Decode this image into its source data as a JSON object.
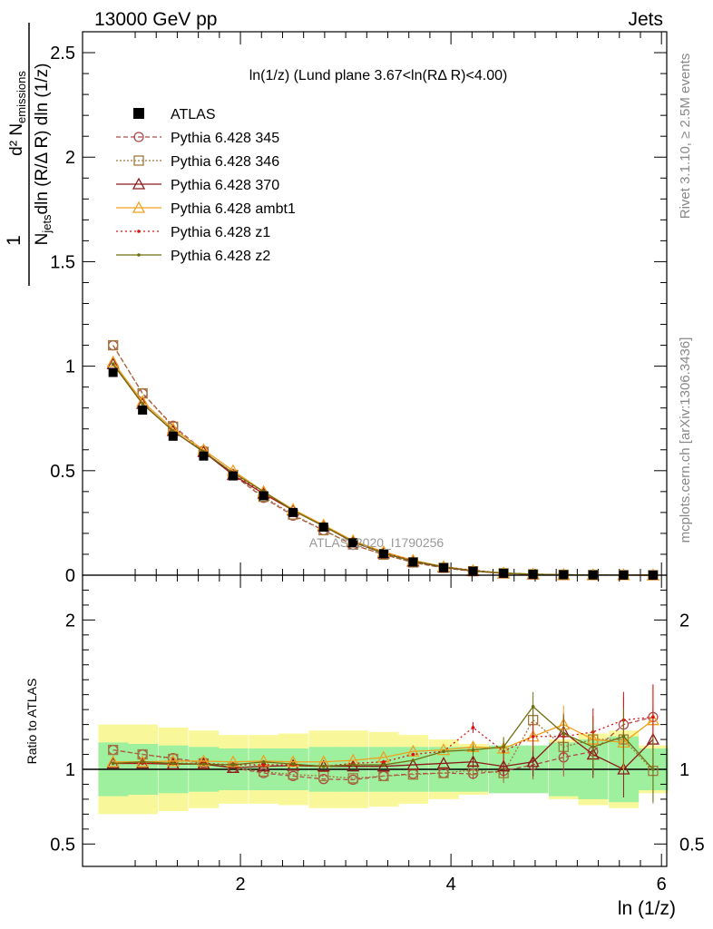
{
  "header": {
    "left": "13000 GeV pp",
    "right": "Jets",
    "side_right": "Rivet 3.1.10, ≥ 2.5M events",
    "side_right2": "mcplots.cern.ch [arXiv:1306.3436]"
  },
  "chart_data": [
    {
      "type": "line",
      "title": "ln(1/z) (Lund plane 3.67<ln(RΔ R)<4.00)",
      "watermark": "ATLAS_2020_I1790256",
      "xlabel": "ln (1/z)",
      "ylabel": "1/N_jets d² N_emissions / dln (R/Δ R) dln (1/z)",
      "xlim": [
        0.5,
        6.05
      ],
      "ylim": [
        0,
        2.6
      ],
      "yticks": [
        0,
        0.5,
        1,
        1.5,
        2,
        2.5
      ],
      "ytick_labels": [
        "0",
        "0.5",
        "1",
        "1.5",
        "2",
        "2.5"
      ],
      "x": [
        0.79,
        1.07,
        1.36,
        1.65,
        1.93,
        2.22,
        2.5,
        2.79,
        3.07,
        3.36,
        3.64,
        3.93,
        4.21,
        4.5,
        4.78,
        5.07,
        5.35,
        5.64,
        5.92
      ],
      "legend_position": "top-left",
      "series": [
        {
          "name": "ATLAS",
          "color": "#000000",
          "marker": "square-filled",
          "dash": "none",
          "values": [
            0.97,
            0.79,
            0.665,
            0.57,
            0.475,
            0.38,
            0.3,
            0.23,
            0.155,
            0.103,
            0.063,
            0.036,
            0.019,
            0.009,
            0.004,
            0.002,
            0.001,
            0.0005,
            0.0002
          ]
        },
        {
          "name": "Pythia 6.428 345",
          "color": "#b04a4a",
          "marker": "circle-open",
          "dash": "5,3",
          "values": [
            1.1,
            0.87,
            0.715,
            0.595,
            0.48,
            0.37,
            0.285,
            0.215,
            0.145,
            0.099,
            0.061,
            0.035,
            0.019,
            0.009,
            0.004,
            0.002,
            0.001,
            0.0006,
            0.0003
          ]
        },
        {
          "name": "Pythia 6.428 346",
          "color": "#a0783a",
          "marker": "square-open",
          "dash": "2,2",
          "values": [
            1.1,
            0.87,
            0.71,
            0.59,
            0.48,
            0.375,
            0.29,
            0.215,
            0.146,
            0.098,
            0.061,
            0.035,
            0.019,
            0.009,
            0.004,
            0.002,
            0.001,
            0.0006,
            0.0002
          ]
        },
        {
          "name": "Pythia 6.428 370",
          "color": "#8b1a1a",
          "marker": "triangle-open",
          "dash": "none",
          "values": [
            1.01,
            0.82,
            0.69,
            0.59,
            0.48,
            0.39,
            0.31,
            0.235,
            0.158,
            0.105,
            0.066,
            0.038,
            0.02,
            0.009,
            0.004,
            0.002,
            0.001,
            0.0005,
            0.0002
          ]
        },
        {
          "name": "Pythia 6.428 ambt1",
          "color": "#f0a020",
          "marker": "triangle-open",
          "dash": "none",
          "values": [
            1.02,
            0.83,
            0.7,
            0.6,
            0.5,
            0.4,
            0.315,
            0.24,
            0.165,
            0.112,
            0.071,
            0.041,
            0.022,
            0.01,
            0.005,
            0.002,
            0.001,
            0.0006,
            0.0003
          ]
        },
        {
          "name": "Pythia 6.428 z1",
          "color": "#dd1111",
          "marker": "dot",
          "dash": "2,3",
          "values": [
            1.01,
            0.82,
            0.69,
            0.59,
            0.49,
            0.39,
            0.31,
            0.235,
            0.16,
            0.108,
            0.069,
            0.04,
            0.024,
            0.01,
            0.005,
            0.002,
            0.001,
            0.0006,
            0.0003
          ]
        },
        {
          "name": "Pythia 6.428 z2",
          "color": "#6f6f10",
          "marker": "dot",
          "dash": "none",
          "values": [
            1.01,
            0.82,
            0.69,
            0.59,
            0.49,
            0.4,
            0.31,
            0.235,
            0.16,
            0.106,
            0.067,
            0.04,
            0.021,
            0.01,
            0.005,
            0.002,
            0.001,
            0.0006,
            0.0002
          ]
        }
      ]
    },
    {
      "type": "line",
      "title": "",
      "xlabel": "ln (1/z)",
      "ylabel": "Ratio to ATLAS",
      "xlim": [
        0.5,
        6.05
      ],
      "ylim": [
        0.35,
        2.3
      ],
      "yticks": [
        0.5,
        1,
        2
      ],
      "ytick_labels": [
        "0.5",
        "1",
        "2"
      ],
      "xticks": [
        2,
        4,
        6
      ],
      "xtick_labels": [
        "2",
        "4",
        "6"
      ],
      "x": [
        0.79,
        1.07,
        1.36,
        1.65,
        1.93,
        2.22,
        2.5,
        2.79,
        3.07,
        3.36,
        3.64,
        3.93,
        4.21,
        4.5,
        4.78,
        5.07,
        5.35,
        5.64,
        5.92
      ],
      "band_green": [
        0.18,
        0.17,
        0.16,
        0.15,
        0.14,
        0.14,
        0.14,
        0.15,
        0.15,
        0.15,
        0.15,
        0.15,
        0.15,
        0.16,
        0.16,
        0.18,
        0.2,
        0.22,
        0.14
      ],
      "band_yellow": [
        0.3,
        0.3,
        0.28,
        0.26,
        0.23,
        0.23,
        0.24,
        0.26,
        0.26,
        0.25,
        0.23,
        0.2,
        0.17,
        0.14,
        0.14,
        0.2,
        0.24,
        0.26,
        0.16
      ],
      "series": [
        {
          "name": "Pythia 6.428 345",
          "values": [
            1.13,
            1.1,
            1.075,
            1.045,
            1.01,
            0.975,
            0.955,
            0.935,
            0.93,
            0.955,
            0.97,
            0.975,
            0.97,
            0.99,
            1.03,
            1.08,
            1.12,
            1.3,
            1.35
          ]
        },
        {
          "name": "Pythia 6.428 346",
          "values": [
            1.13,
            1.1,
            1.07,
            1.04,
            1.01,
            0.985,
            0.965,
            0.955,
            0.94,
            0.955,
            0.965,
            0.975,
            0.995,
            0.975,
            1.33,
            1.15,
            1.2,
            1.2,
            0.99
          ]
        },
        {
          "name": "Pythia 6.428 370",
          "values": [
            1.04,
            1.04,
            1.035,
            1.035,
            1.01,
            1.02,
            1.025,
            1.02,
            1.02,
            1.02,
            1.03,
            1.04,
            1.05,
            1.02,
            1.05,
            1.25,
            1.1,
            1.0,
            1.2
          ]
        },
        {
          "name": "Pythia 6.428 ambt1",
          "values": [
            1.05,
            1.05,
            1.055,
            1.055,
            1.05,
            1.055,
            1.05,
            1.05,
            1.06,
            1.08,
            1.12,
            1.13,
            1.15,
            1.14,
            1.22,
            1.3,
            1.2,
            1.18,
            1.33
          ]
        },
        {
          "name": "Pythia 6.428 z1",
          "values": [
            1.04,
            1.04,
            1.04,
            1.04,
            1.03,
            1.03,
            1.03,
            1.02,
            1.04,
            1.05,
            1.1,
            1.12,
            1.28,
            1.12,
            1.22,
            1.22,
            1.25,
            1.33,
            1.35
          ]
        },
        {
          "name": "Pythia 6.428 z2",
          "values": [
            1.04,
            1.05,
            1.04,
            1.035,
            1.03,
            1.05,
            1.035,
            1.02,
            1.03,
            1.03,
            1.06,
            1.12,
            1.13,
            1.15,
            1.42,
            1.24,
            1.15,
            1.22,
            1.0
          ]
        }
      ]
    }
  ]
}
